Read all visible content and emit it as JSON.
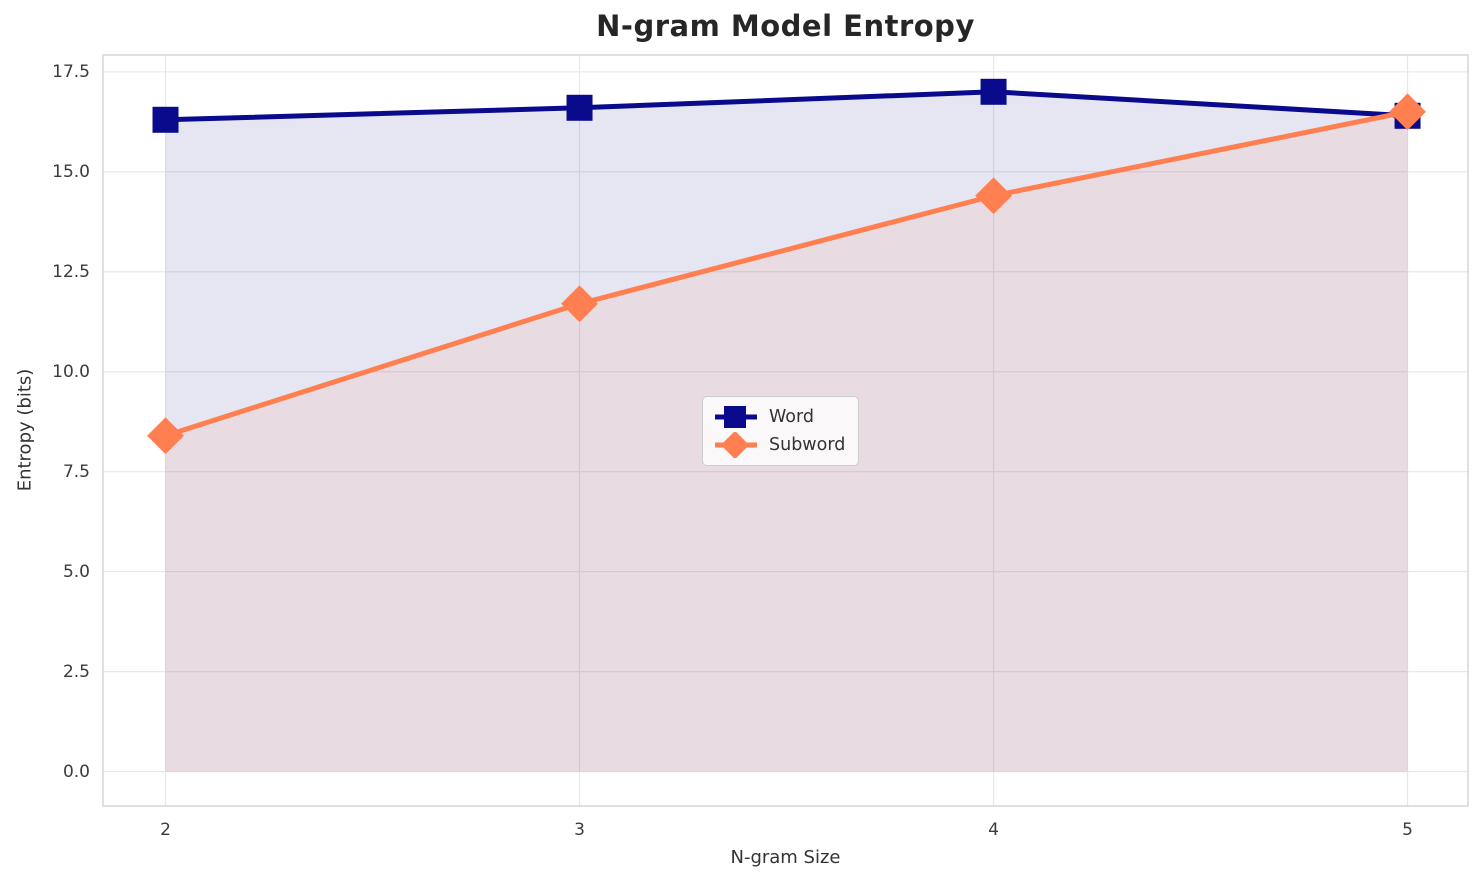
{
  "chart_data": {
    "type": "line",
    "title": "N-gram Model Entropy",
    "xlabel": "N-gram Size",
    "ylabel": "Entropy (bits)",
    "x": [
      2,
      3,
      4,
      5
    ],
    "series": [
      {
        "name": "Word",
        "values": [
          16.3,
          16.6,
          17.0,
          16.4
        ],
        "color": "#0a0a8c",
        "marker": "square"
      },
      {
        "name": "Subword",
        "values": [
          8.4,
          11.7,
          14.4,
          16.5
        ],
        "color": "#ff7f50",
        "marker": "diamond"
      }
    ],
    "fill_to_zero": true,
    "fill_alpha": 0.1,
    "line_width": 5,
    "xtick_labels": [
      "2",
      "3",
      "4",
      "5"
    ],
    "yticks": [
      0,
      2.5,
      5,
      7.5,
      10,
      12.5,
      15,
      17.5
    ],
    "ytick_labels": [
      "0.0",
      "2.5",
      "5.0",
      "7.5",
      "10.0",
      "12.5",
      "15.0",
      "17.5"
    ],
    "xlim": [
      1.849,
      5.146
    ],
    "ylim": [
      -0.86,
      17.92
    ],
    "grid": true,
    "legend_position": "center"
  },
  "colors": {
    "grid": "#e8e8e8",
    "plot_border": "#d6d6d6",
    "tick_text": "#3b3b3b",
    "title_text": "#262626",
    "background": "#ffffff"
  }
}
